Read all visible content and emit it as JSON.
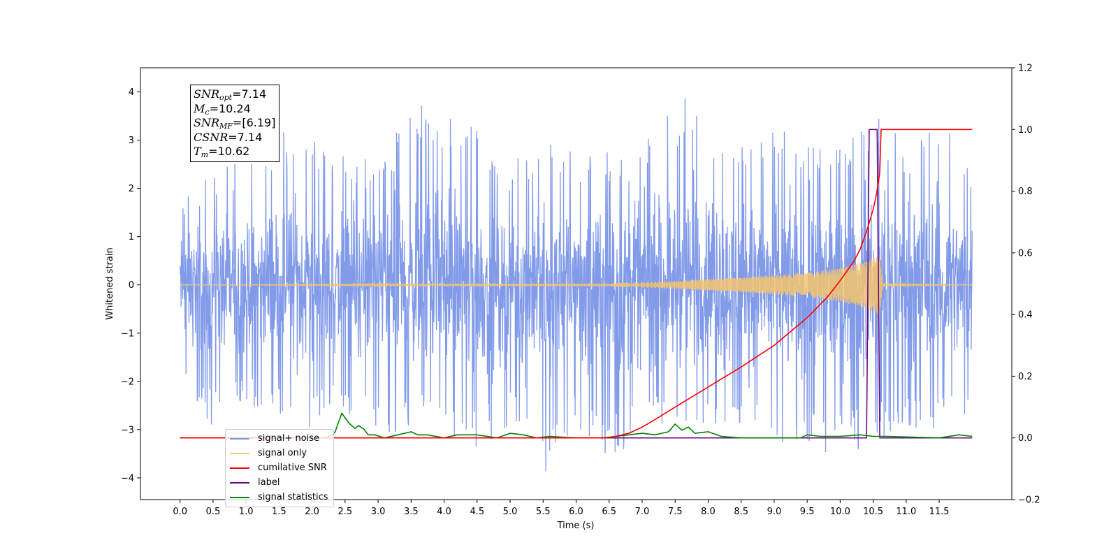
{
  "chart_data": {
    "type": "line",
    "xlabel": "Time (s)",
    "ylabel": "Whitened strain",
    "xlim": [
      -0.6,
      12.6
    ],
    "ylim": [
      -4.45,
      4.5
    ],
    "y2lim": [
      -0.2,
      1.2
    ],
    "x_ticks": [
      "0.0",
      "0.5",
      "1.0",
      "1.5",
      "2.0",
      "2.5",
      "3.0",
      "3.5",
      "4.0",
      "4.5",
      "5.0",
      "5.5",
      "6.0",
      "6.5",
      "7.0",
      "7.5",
      "8.0",
      "8.5",
      "9.0",
      "9.5",
      "10.0",
      "10.5",
      "11.0",
      "11.5"
    ],
    "y_ticks": [
      "−4",
      "−3",
      "−2",
      "−1",
      "0",
      "1",
      "2",
      "3",
      "4"
    ],
    "y2_ticks": [
      "−0.2",
      "0.0",
      "0.2",
      "0.4",
      "0.6",
      "0.8",
      "1.0",
      "1.2"
    ],
    "grid": false,
    "legend_position": "lower-left",
    "annotation": {
      "snr_opt_label": "SNR",
      "snr_opt_sub": "opt",
      "snr_opt_value": "=7.14",
      "mc_label": "M",
      "mc_sub": "c",
      "mc_value": "=10.24",
      "snr_mf_label": "SNR",
      "snr_mf_sub": "MF",
      "snr_mf_value": "=[6.19]",
      "csnr_label": "CSNR",
      "csnr_value": "=7.14",
      "tm_label": "T",
      "tm_sub": "m",
      "tm_value": "=10.62"
    },
    "series": [
      {
        "name": "signal+ noise",
        "color": "#7b96e8",
        "axis": "left",
        "x": [
          0.0,
          0.5,
          1.0,
          1.5,
          2.0,
          2.5,
          3.0,
          3.5,
          4.0,
          4.5,
          5.0,
          5.5,
          6.0,
          6.5,
          7.0,
          7.5,
          7.75,
          8.0,
          8.5,
          9.0,
          9.5,
          10.0,
          10.45,
          11.0,
          11.5,
          12.0
        ],
        "y_upper": [
          1.8,
          2.3,
          2.7,
          3.2,
          3.0,
          2.8,
          2.5,
          3.75,
          3.8,
          3.3,
          2.5,
          3.2,
          2.7,
          2.8,
          2.9,
          3.7,
          4.1,
          3.6,
          2.9,
          3.2,
          3.2,
          3.1,
          3.6,
          3.0,
          3.65,
          2.4
        ],
        "y_lower": [
          -1.8,
          -3.0,
          -2.5,
          -2.7,
          -3.0,
          -2.6,
          -3.3,
          -2.9,
          -3.2,
          -3.5,
          -2.9,
          -4.0,
          -3.0,
          -3.7,
          -3.1,
          -3.0,
          -3.0,
          -2.9,
          -3.0,
          -3.5,
          -3.3,
          -3.6,
          -3.3,
          -3.0,
          -3.0,
          -2.9
        ]
      },
      {
        "name": "signal only",
        "color": "#f5c46e",
        "axis": "left",
        "x": [
          0.0,
          6.5,
          7.5,
          8.5,
          9.5,
          10.0,
          10.3,
          10.5,
          10.6,
          10.62,
          10.65,
          12.0
        ],
        "y_amplitude": [
          0.0,
          0.03,
          0.08,
          0.15,
          0.25,
          0.35,
          0.45,
          0.55,
          0.62,
          0.3,
          0.02,
          0.0
        ]
      },
      {
        "name": "cumilative SNR",
        "color": "#ff0000",
        "axis": "right",
        "x": [
          0.0,
          6.5,
          6.8,
          7.0,
          7.2,
          7.5,
          8.0,
          8.5,
          9.0,
          9.5,
          9.8,
          10.0,
          10.2,
          10.3,
          10.4,
          10.5,
          10.55,
          10.6,
          10.62,
          11.0,
          12.0
        ],
        "y": [
          0.0,
          0.0,
          0.015,
          0.035,
          0.06,
          0.1,
          0.165,
          0.23,
          0.3,
          0.39,
          0.455,
          0.51,
          0.57,
          0.61,
          0.67,
          0.74,
          0.79,
          0.86,
          1.0,
          1.0,
          1.0
        ]
      },
      {
        "name": "label",
        "color": "#6a0d83",
        "axis": "right",
        "x": [
          0.0,
          10.4,
          10.44,
          10.56,
          10.6,
          12.0
        ],
        "y": [
          0.0,
          0.0,
          1.0,
          1.0,
          0.0,
          0.0
        ]
      },
      {
        "name": "signal statistics",
        "color": "#008000",
        "axis": "right",
        "x": [
          0.0,
          2.2,
          2.3,
          2.35,
          2.45,
          2.55,
          2.65,
          2.7,
          2.78,
          2.85,
          2.95,
          3.1,
          3.3,
          3.5,
          3.6,
          3.75,
          4.0,
          4.2,
          4.5,
          4.8,
          5.0,
          5.2,
          5.4,
          5.6,
          6.0,
          6.4,
          6.6,
          6.8,
          7.0,
          7.2,
          7.4,
          7.5,
          7.6,
          7.7,
          7.8,
          8.0,
          8.2,
          8.5,
          9.0,
          9.4,
          9.5,
          9.7,
          10.0,
          10.3,
          10.5,
          10.7,
          11.5,
          11.8,
          12.0
        ],
        "y": [
          0.0,
          0.0,
          0.01,
          0.02,
          0.08,
          0.05,
          0.03,
          0.04,
          0.03,
          0.01,
          0.01,
          0.0,
          0.01,
          0.02,
          0.01,
          0.01,
          0.0,
          0.01,
          0.01,
          0.0,
          0.015,
          0.01,
          0.0,
          0.005,
          0.0,
          0.0,
          0.005,
          0.01,
          0.015,
          0.01,
          0.02,
          0.045,
          0.025,
          0.035,
          0.015,
          0.02,
          0.005,
          0.0,
          0.0,
          0.0,
          0.01,
          0.005,
          0.005,
          0.01,
          0.005,
          0.005,
          0.0,
          0.01,
          0.005
        ]
      }
    ]
  }
}
